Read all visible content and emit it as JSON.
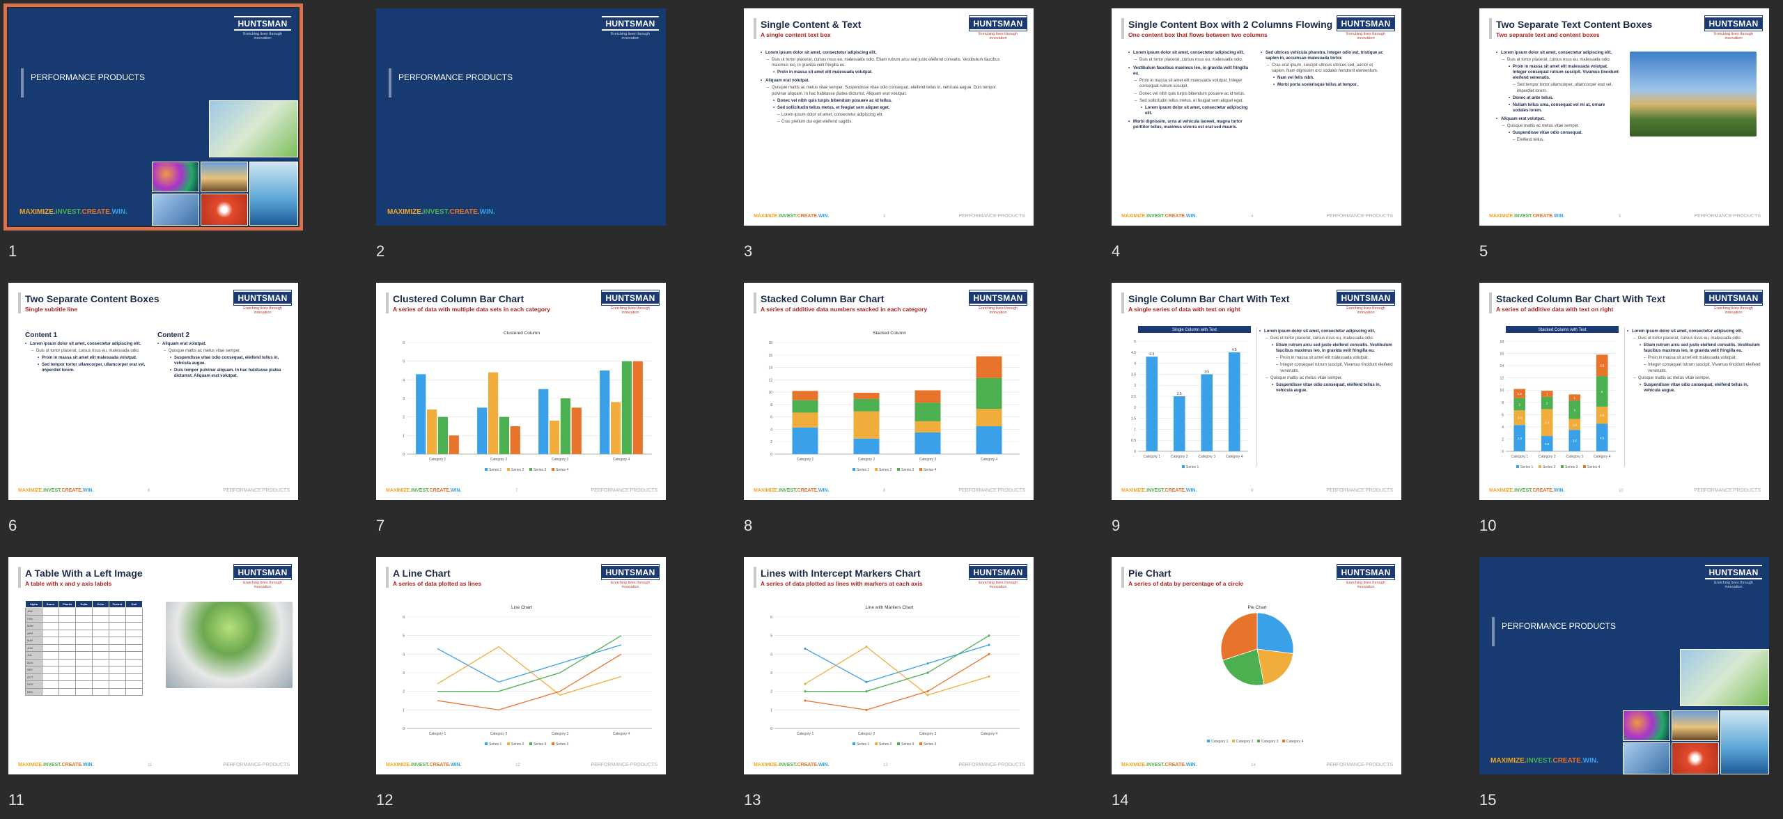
{
  "brand": {
    "logo": "HUNTSMAN",
    "tagline": "Enriching lives through innovation",
    "footer_words": [
      "MAXIMIZE.",
      "INVEST.",
      "CREATE.",
      "WIN."
    ],
    "footer_right": "PERFORMANCE PRODUCTS",
    "colors": {
      "navy": "#173a70",
      "maximize": "#f5a623",
      "invest": "#4caf50",
      "create": "#e8732b",
      "win": "#3aa0e8",
      "subtitle": "#b22222",
      "selection": "#d8714f"
    }
  },
  "slides": [
    {
      "num": "1",
      "title": "PERFORMANCE PRODUCTS",
      "selected": true
    },
    {
      "num": "2",
      "title": "PERFORMANCE PRODUCTS"
    },
    {
      "num": "3",
      "title": "Single Content & Text",
      "subtitle": "A single content text box",
      "page": "3",
      "bullets": [
        {
          "lvl": 1,
          "text": "Lorem ipsum dolor sit amet, consectetur adipiscing elit."
        },
        {
          "lvl": 2,
          "text": "Duis ut tortor placerat, cursus risus eu, malesuada odio. Etiam rutrum arcu sed justo eleifend convallis. Vestibulum faucibus maximus leo, in gravida velit fringilla eu."
        },
        {
          "lvl": 3,
          "text": "Proin in massa sit amet elit malesuada volutpat."
        },
        {
          "lvl": 1,
          "text": "Aliquam erat volutpat."
        },
        {
          "lvl": 2,
          "text": "Quisque mattis ac metus vitae semper. Suspendisse vitae odio consequat, eleifend tellus in, vehicula augue. Duis tempor pulvinar aliquam. In hac habitasse platea dictumst. Aliquam erat volutpat."
        },
        {
          "lvl": 3,
          "text": "Donec vel nibh quis turpis bibendum posuere ac id tellus."
        },
        {
          "lvl": 3,
          "text": "Sed sollicitudin tellus metus, et feugiat sem aliquet eget."
        },
        {
          "lvl": 4,
          "text": "Lorem ipsum dolor sit amet, consectetur adipiscing elit."
        },
        {
          "lvl": 4,
          "text": "Cras pretium dui eget eleifend sagittis."
        }
      ]
    },
    {
      "num": "4",
      "title": "Single Content Box with 2 Columns Flowing",
      "subtitle": "One content box that flows between two columns",
      "page": "4",
      "col1": [
        {
          "lvl": 1,
          "text": "Lorem ipsum dolor sit amet, consectetur adipiscing elit."
        },
        {
          "lvl": 2,
          "text": "Duis ut tortor placerat, cursus risus eu, malesuada odio."
        },
        {
          "lvl": 1,
          "text": "Vestibulum faucibus maximus leo, in gravida velit fringilla eu."
        },
        {
          "lvl": 2,
          "text": "Proin in massa sit amet elit malesuada volutpat. Integer consequat rutrum suscipit."
        },
        {
          "lvl": 2,
          "text": "Donec vel nibh quis turpis bibendum posuere ac id tellus."
        },
        {
          "lvl": 2,
          "text": "Sed sollicitudin tellus metus, et feugiat sem aliquet eget."
        },
        {
          "lvl": 3,
          "text": "Lorem ipsum dolor sit amet, consectetur adipiscing elit."
        },
        {
          "lvl": 1,
          "text": "Morbi dignissim, urna at vehicula laoreet, magna tortor porttitor tellus, maximus viverra est erat sed mauris."
        }
      ],
      "col2": [
        {
          "lvl": 1,
          "text": "Sed ultrices vehicula pharetra. Integer odio est, tristique ac sapien in, accumsan malesuada tortor."
        },
        {
          "lvl": 2,
          "text": "Cras erat ipsum, suscipit ultrices ultrices sed, auctor et sapien. Nam dignissim orci sodales hendrerit elementum."
        },
        {
          "lvl": 3,
          "text": "Nam vel felis nibh."
        },
        {
          "lvl": 3,
          "text": "Morbi porta scelerisque tellus at tempor."
        }
      ]
    },
    {
      "num": "5",
      "title": "Two Separate Text Content Boxes",
      "subtitle": "Two separate text and content boxes",
      "page": "5",
      "bullets": [
        {
          "lvl": 1,
          "text": "Lorem ipsum dolor sit amet, consectetur adipiscing elit."
        },
        {
          "lvl": 2,
          "text": "Duis ut tortor placerat, cursus risus eu, malesuada odio."
        },
        {
          "lvl": 3,
          "text": "Proin in massa sit amet elit malesuada volutpat. Integer consequat rutrum suscipit. Vivamus tincidunt eleifend venenatis."
        },
        {
          "lvl": 4,
          "text": "Sed tempor tortor ullamcorper, ullamcorper erat vel, imperdiet lorem."
        },
        {
          "lvl": 3,
          "text": "Donec at ante tellus."
        },
        {
          "lvl": 3,
          "text": "Nullam tellus uma, consequat vel mi at, ornare sodales lorem."
        },
        {
          "lvl": 1,
          "text": "Aliquam erat volutpat."
        },
        {
          "lvl": 2,
          "text": "Quisque mattis ac metus vitae semper."
        },
        {
          "lvl": 3,
          "text": "Suspendisse vitae odio consequat."
        },
        {
          "lvl": 4,
          "text": "Eleifend tellus."
        }
      ]
    },
    {
      "num": "6",
      "title": "Two Separate Content Boxes",
      "subtitle": "Single subtitle line",
      "page": "6",
      "content1": "Content 1",
      "content2": "Content 2",
      "col1": [
        {
          "lvl": 1,
          "text": "Lorem ipsum dolor sit amet, consectetur adipiscing elit."
        },
        {
          "lvl": 2,
          "text": "Duis ut tortor placerat, cursus risus eu, malesuada odio."
        },
        {
          "lvl": 3,
          "text": "Proin in massa sit amet elit malesuada volutpat."
        },
        {
          "lvl": 3,
          "text": "Sed tempor tortor ullamcorper, ullamcorper erat vel, imperdiet lorem."
        }
      ],
      "col2": [
        {
          "lvl": 1,
          "text": "Aliquam erat volutpat."
        },
        {
          "lvl": 2,
          "text": "Quisque mattis ac metus vitae semper."
        },
        {
          "lvl": 3,
          "text": "Suspendisse vitae odio consequat, eleifend tellus in, vehicula augue."
        },
        {
          "lvl": 3,
          "text": "Duis tempor pulvinar aliquam. In hac habitasse platea dictumst. Aliquam erat volutpat."
        }
      ]
    },
    {
      "num": "7",
      "title": "Clustered Column Bar Chart",
      "subtitle": "A series of data with multiple data sets in each category",
      "page": "7"
    },
    {
      "num": "8",
      "title": "Stacked Column Bar Chart",
      "subtitle": "A series of additive data numbers stacked in each category",
      "page": "8"
    },
    {
      "num": "9",
      "title": "Single Column Bar Chart With Text",
      "subtitle": "A single series of data with text on right",
      "page": "9",
      "bullets": [
        {
          "lvl": 1,
          "text": "Lorem ipsum dolor sit amet, consectetur adipiscing elit."
        },
        {
          "lvl": 2,
          "text": "Duis ut tortor placerat, cursus risus eu, malesuada odio."
        },
        {
          "lvl": 3,
          "text": "Etiam rutrum arcu sed justo eleifend convallis. Vestibulum faucibus maximus leo, in gravida velit fringilla eu."
        },
        {
          "lvl": 4,
          "text": "Proin in massa sit amet elit malesuada volutpat."
        },
        {
          "lvl": 4,
          "text": "Integer consequat rutrum suscipit. Vivamus tincidunt eleifend venenatis."
        },
        {
          "lvl": 2,
          "text": "Quisque mattis ac metus vitae semper."
        },
        {
          "lvl": 3,
          "text": "Suspendisse vitae odio consequat, eleifend tellus in, vehicula augue."
        }
      ]
    },
    {
      "num": "10",
      "title": "Stacked Column Bar Chart With Text",
      "subtitle": "A series of additive data with text on right",
      "page": "10",
      "bullets": [
        {
          "lvl": 1,
          "text": "Lorem ipsum dolor sit amet, consectetur adipiscing elit."
        },
        {
          "lvl": 2,
          "text": "Duis ut tortor placerat, cursus risus eu, malesuada odio."
        },
        {
          "lvl": 3,
          "text": "Etiam rutrum arcu sed justo eleifend convallis. Vestibulum faucibus maximus leo, in gravida velit fringilla eu."
        },
        {
          "lvl": 4,
          "text": "Proin in massa sit amet elit malesuada volutpat."
        },
        {
          "lvl": 4,
          "text": "Integer consequat rutrum suscipit. Vivamus tincidunt eleifend venenatis."
        },
        {
          "lvl": 2,
          "text": "Quisque mattis ac metus vitae semper."
        },
        {
          "lvl": 3,
          "text": "Suspendisse vitae odio consequat, eleifend tellus in, vehicula augue."
        }
      ]
    },
    {
      "num": "11",
      "title": "A Table With a Left Image",
      "subtitle": "A table with x and y axis labels",
      "page": "11",
      "table_headers": [
        "Alpha",
        "Bravo",
        "Charlie",
        "Delta",
        "Echo",
        "Foxtrot",
        "Golf"
      ],
      "table_rows": [
        "JAN",
        "FEB",
        "MAR",
        "APR",
        "MAY",
        "JUN",
        "JUL",
        "AUG",
        "SEP",
        "OCT",
        "NOV",
        "DEC"
      ]
    },
    {
      "num": "12",
      "title": "A Line Chart",
      "subtitle": "A series of data plotted as lines",
      "page": "12"
    },
    {
      "num": "13",
      "title": "Lines with Intercept Markers Chart",
      "subtitle": "A series of data plotted as lines with markers at each axis",
      "page": "13"
    },
    {
      "num": "14",
      "title": "Pie Chart",
      "subtitle": "A series of data by percentage of a circle",
      "page": "14"
    },
    {
      "num": "15",
      "title": "PERFORMANCE PRODUCTS"
    }
  ],
  "chart_data": [
    {
      "slide": "7",
      "type": "bar",
      "title": "Clustered Column",
      "categories": [
        "Category 1",
        "Category 2",
        "Category 3",
        "Category 4"
      ],
      "ylim": [
        0,
        6
      ],
      "series": [
        {
          "name": "Series 1",
          "color": "#3aa0e8",
          "values": [
            4.3,
            2.5,
            3.5,
            4.5
          ]
        },
        {
          "name": "Series 2",
          "color": "#f0ad3c",
          "values": [
            2.4,
            4.4,
            1.8,
            2.8
          ]
        },
        {
          "name": "Series 3",
          "color": "#4caf50",
          "values": [
            2,
            2,
            3,
            5
          ]
        },
        {
          "name": "Series 4",
          "color": "#e8732b",
          "values": [
            1,
            1.5,
            2.5,
            5
          ]
        }
      ]
    },
    {
      "slide": "8",
      "type": "bar",
      "stacked": true,
      "title": "Stacked Column",
      "categories": [
        "Category 1",
        "Category 2",
        "Category 3",
        "Category 4"
      ],
      "ylim": [
        0,
        18
      ],
      "series": [
        {
          "name": "Series 1",
          "color": "#3aa0e8",
          "values": [
            4.3,
            2.5,
            3.5,
            4.5
          ]
        },
        {
          "name": "Series 2",
          "color": "#f0ad3c",
          "values": [
            2.4,
            4.4,
            1.8,
            2.8
          ]
        },
        {
          "name": "Series 3",
          "color": "#4caf50",
          "values": [
            2,
            2,
            3,
            5
          ]
        },
        {
          "name": "Series 4",
          "color": "#e8732b",
          "values": [
            1.5,
            1,
            2,
            3.5
          ]
        }
      ]
    },
    {
      "slide": "9",
      "type": "bar",
      "title": "Single Column with Text",
      "categories": [
        "Category 1",
        "Category 2",
        "Category 3",
        "Category 4"
      ],
      "ylim": [
        0,
        5
      ],
      "series": [
        {
          "name": "Series 1",
          "color": "#3aa0e8",
          "values": [
            4.3,
            2.5,
            3.5,
            4.5
          ]
        }
      ]
    },
    {
      "slide": "10",
      "type": "bar",
      "stacked": true,
      "title": "Stacked Column with Text",
      "categories": [
        "Category 1",
        "Category 2",
        "Category 3",
        "Category 4"
      ],
      "ylim": [
        0,
        18
      ],
      "series": [
        {
          "name": "Series 1",
          "color": "#3aa0e8",
          "values": [
            4.3,
            2.5,
            3.5,
            4.5
          ]
        },
        {
          "name": "Series 2",
          "color": "#f0ad3c",
          "values": [
            2.4,
            4.4,
            1.8,
            2.8
          ]
        },
        {
          "name": "Series 3",
          "color": "#4caf50",
          "values": [
            2,
            2,
            3,
            5
          ]
        },
        {
          "name": "Series 4",
          "color": "#e8732b",
          "values": [
            1.5,
            1,
            1,
            3.5
          ]
        }
      ]
    },
    {
      "slide": "12",
      "type": "line",
      "title": "Line Chart",
      "categories": [
        "Category 1",
        "Category 2",
        "Category 3",
        "Category 4"
      ],
      "ylim": [
        0,
        6
      ],
      "series": [
        {
          "name": "Series 1",
          "color": "#3aa0e8",
          "values": [
            4.3,
            2.5,
            3.5,
            4.5
          ]
        },
        {
          "name": "Series 2",
          "color": "#f0ad3c",
          "values": [
            2.4,
            4.4,
            1.8,
            2.8
          ]
        },
        {
          "name": "Series 3",
          "color": "#4caf50",
          "values": [
            2,
            2,
            3,
            5
          ]
        },
        {
          "name": "Series 4",
          "color": "#e8732b",
          "values": [
            1.5,
            1,
            2,
            4
          ]
        }
      ]
    },
    {
      "slide": "13",
      "type": "line",
      "markers": true,
      "title": "Line with Markers Chart",
      "categories": [
        "Category 1",
        "Category 2",
        "Category 3",
        "Category 4"
      ],
      "ylim": [
        0,
        6
      ],
      "series": [
        {
          "name": "Series 1",
          "color": "#3aa0e8",
          "values": [
            4.3,
            2.5,
            3.5,
            4.5
          ]
        },
        {
          "name": "Series 2",
          "color": "#f0ad3c",
          "values": [
            2.4,
            4.4,
            1.8,
            2.8
          ]
        },
        {
          "name": "Series 3",
          "color": "#4caf50",
          "values": [
            2,
            2,
            3,
            5
          ]
        },
        {
          "name": "Series 4",
          "color": "#e8732b",
          "values": [
            1.5,
            1,
            2,
            4
          ]
        }
      ]
    },
    {
      "slide": "14",
      "type": "pie",
      "title": "Pie Chart",
      "categories": [
        "Category 1",
        "Category 2",
        "Category 3",
        "Category 4"
      ],
      "colors": [
        "#3aa0e8",
        "#f0ad3c",
        "#4caf50",
        "#e8732b"
      ],
      "values": [
        27,
        20,
        23,
        30
      ]
    }
  ]
}
